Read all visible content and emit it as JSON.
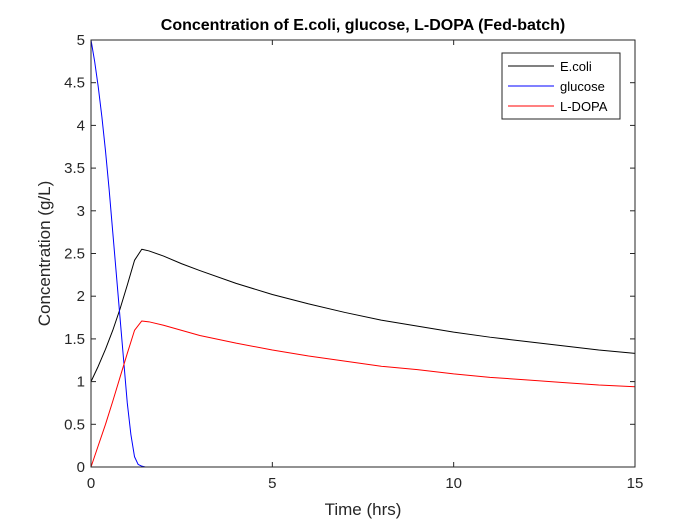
{
  "chart_data": {
    "type": "line",
    "title": "Concentration of E.coli, glucose, L-DOPA (Fed-batch)",
    "xlabel": "Time (hrs)",
    "ylabel": "Concentration (g/L)",
    "xlim": [
      0,
      15
    ],
    "ylim": [
      0,
      5
    ],
    "x_ticks": [
      {
        "value": 0,
        "label": "0"
      },
      {
        "value": 5,
        "label": "5"
      },
      {
        "value": 10,
        "label": "10"
      },
      {
        "value": 15,
        "label": "15"
      }
    ],
    "y_ticks": [
      {
        "value": 0,
        "label": "0"
      },
      {
        "value": 0.5,
        "label": "0.5"
      },
      {
        "value": 1,
        "label": "1"
      },
      {
        "value": 1.5,
        "label": "1.5"
      },
      {
        "value": 2,
        "label": "2"
      },
      {
        "value": 2.5,
        "label": "2.5"
      },
      {
        "value": 3,
        "label": "3"
      },
      {
        "value": 3.5,
        "label": "3.5"
      },
      {
        "value": 4,
        "label": "4"
      },
      {
        "value": 4.5,
        "label": "4.5"
      },
      {
        "value": 5,
        "label": "5"
      }
    ],
    "grid": false,
    "legend_position": "top-right",
    "series": [
      {
        "name": "E.coli",
        "color": "#000000",
        "x": [
          0,
          0.2,
          0.4,
          0.6,
          0.8,
          1.0,
          1.2,
          1.4,
          1.6,
          2,
          2.5,
          3,
          4,
          5,
          6,
          7,
          8,
          9,
          10,
          11,
          12,
          13,
          14,
          15
        ],
        "y": [
          1.0,
          1.18,
          1.38,
          1.6,
          1.85,
          2.13,
          2.42,
          2.55,
          2.53,
          2.47,
          2.38,
          2.3,
          2.15,
          2.02,
          1.91,
          1.81,
          1.72,
          1.65,
          1.58,
          1.52,
          1.47,
          1.42,
          1.37,
          1.33
        ]
      },
      {
        "name": "glucose",
        "color": "#0000ff",
        "x": [
          0,
          0.1,
          0.2,
          0.3,
          0.4,
          0.5,
          0.6,
          0.7,
          0.8,
          0.9,
          1.0,
          1.1,
          1.2,
          1.3,
          1.4,
          1.5,
          1.6,
          2,
          15
        ],
        "y": [
          5.0,
          4.75,
          4.45,
          4.1,
          3.7,
          3.25,
          2.75,
          2.25,
          1.75,
          1.25,
          0.75,
          0.38,
          0.12,
          0.03,
          0.01,
          0.0,
          0.0,
          0.0,
          0.0
        ]
      },
      {
        "name": "L-DOPA",
        "color": "#ff0000",
        "x": [
          0,
          0.2,
          0.4,
          0.6,
          0.8,
          1.0,
          1.2,
          1.4,
          1.6,
          2,
          3,
          4,
          5,
          6,
          7,
          8,
          9,
          10,
          11,
          12,
          13,
          14,
          15
        ],
        "y": [
          0.0,
          0.25,
          0.5,
          0.77,
          1.05,
          1.33,
          1.6,
          1.71,
          1.7,
          1.66,
          1.54,
          1.45,
          1.37,
          1.3,
          1.24,
          1.18,
          1.14,
          1.09,
          1.05,
          1.02,
          0.99,
          0.96,
          0.94
        ]
      }
    ]
  }
}
